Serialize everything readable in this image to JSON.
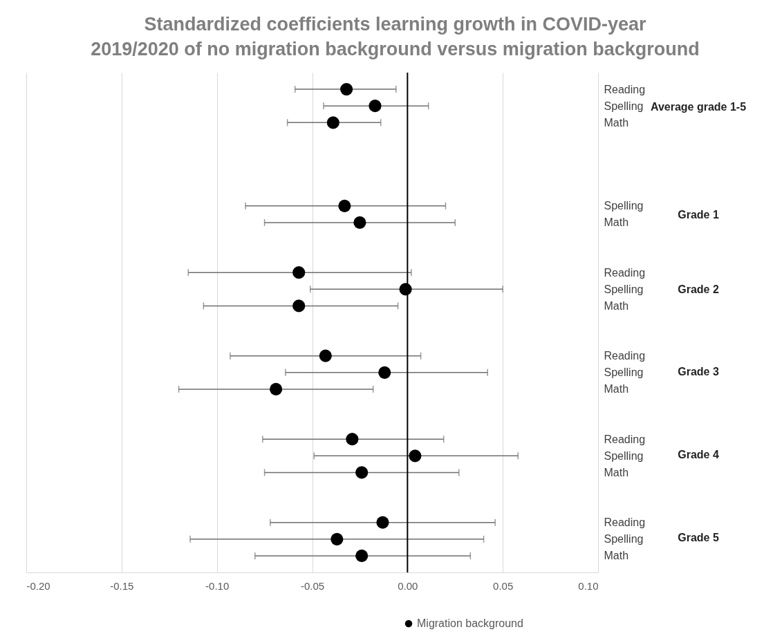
{
  "chart_data": {
    "type": "scatter",
    "title": "Standardized coefficients learning growth in COVID-year 2019/2020 of no migration background versus migration background",
    "categories": [
      "Reading",
      "Spelling",
      "Math",
      null,
      null,
      null,
      null,
      "Spelling",
      "Math",
      null,
      null,
      "Reading",
      "Spelling",
      "Math",
      null,
      null,
      "Reading",
      "Spelling",
      "Math",
      null,
      null,
      "Reading",
      "Spelling",
      "Math",
      null,
      null,
      "Reading",
      "Spelling",
      "Math"
    ],
    "series": [
      {
        "name": "Migration background",
        "color": "#000000",
        "values": [
          -0.032,
          -0.017,
          -0.039,
          null,
          null,
          null,
          null,
          -0.033,
          -0.025,
          null,
          null,
          -0.057,
          -0.001,
          -0.057,
          null,
          null,
          -0.043,
          -0.012,
          -0.069,
          null,
          null,
          -0.029,
          0.004,
          -0.024,
          null,
          null,
          -0.013,
          -0.037,
          -0.024
        ],
        "errors": [
          [
            -0.059,
            -0.006
          ],
          [
            -0.044,
            0.011
          ],
          [
            -0.063,
            -0.014
          ],
          null,
          null,
          null,
          null,
          [
            -0.085,
            0.02
          ],
          [
            -0.075,
            0.025
          ],
          null,
          null,
          [
            -0.115,
            0.002
          ],
          [
            -0.051,
            0.05
          ],
          [
            -0.107,
            -0.005
          ],
          null,
          null,
          [
            -0.093,
            0.007
          ],
          [
            -0.064,
            0.042
          ],
          [
            -0.12,
            -0.018
          ],
          null,
          null,
          [
            -0.076,
            0.019
          ],
          [
            -0.049,
            0.058
          ],
          [
            -0.075,
            0.027
          ],
          null,
          null,
          [
            -0.072,
            0.046
          ],
          [
            -0.114,
            0.04
          ],
          [
            -0.08,
            0.033
          ]
        ]
      }
    ],
    "annotations": [
      "Average grade 1-5",
      "Grade 1",
      "Grade 2",
      "Grade 3",
      "Grade 4",
      "Grade 5"
    ],
    "xlim": [
      -0.2,
      0.1
    ],
    "xticks": [
      {
        "value": -0.2,
        "label": "-0.20"
      },
      {
        "value": -0.15,
        "label": "-0.15"
      },
      {
        "value": -0.1,
        "label": "-0.10"
      },
      {
        "value": -0.05,
        "label": "-0.05"
      },
      {
        "value": 0,
        "label": "0.00"
      },
      {
        "value": 0.05,
        "label": "0.05"
      },
      {
        "value": 0.1,
        "label": "0.10"
      }
    ],
    "ref_lines": [
      {
        "axis": "x",
        "value": 0,
        "color": "#000000"
      }
    ],
    "grid": "x",
    "legend": "bottom",
    "marker": "circle",
    "orientation": "horizontal"
  }
}
